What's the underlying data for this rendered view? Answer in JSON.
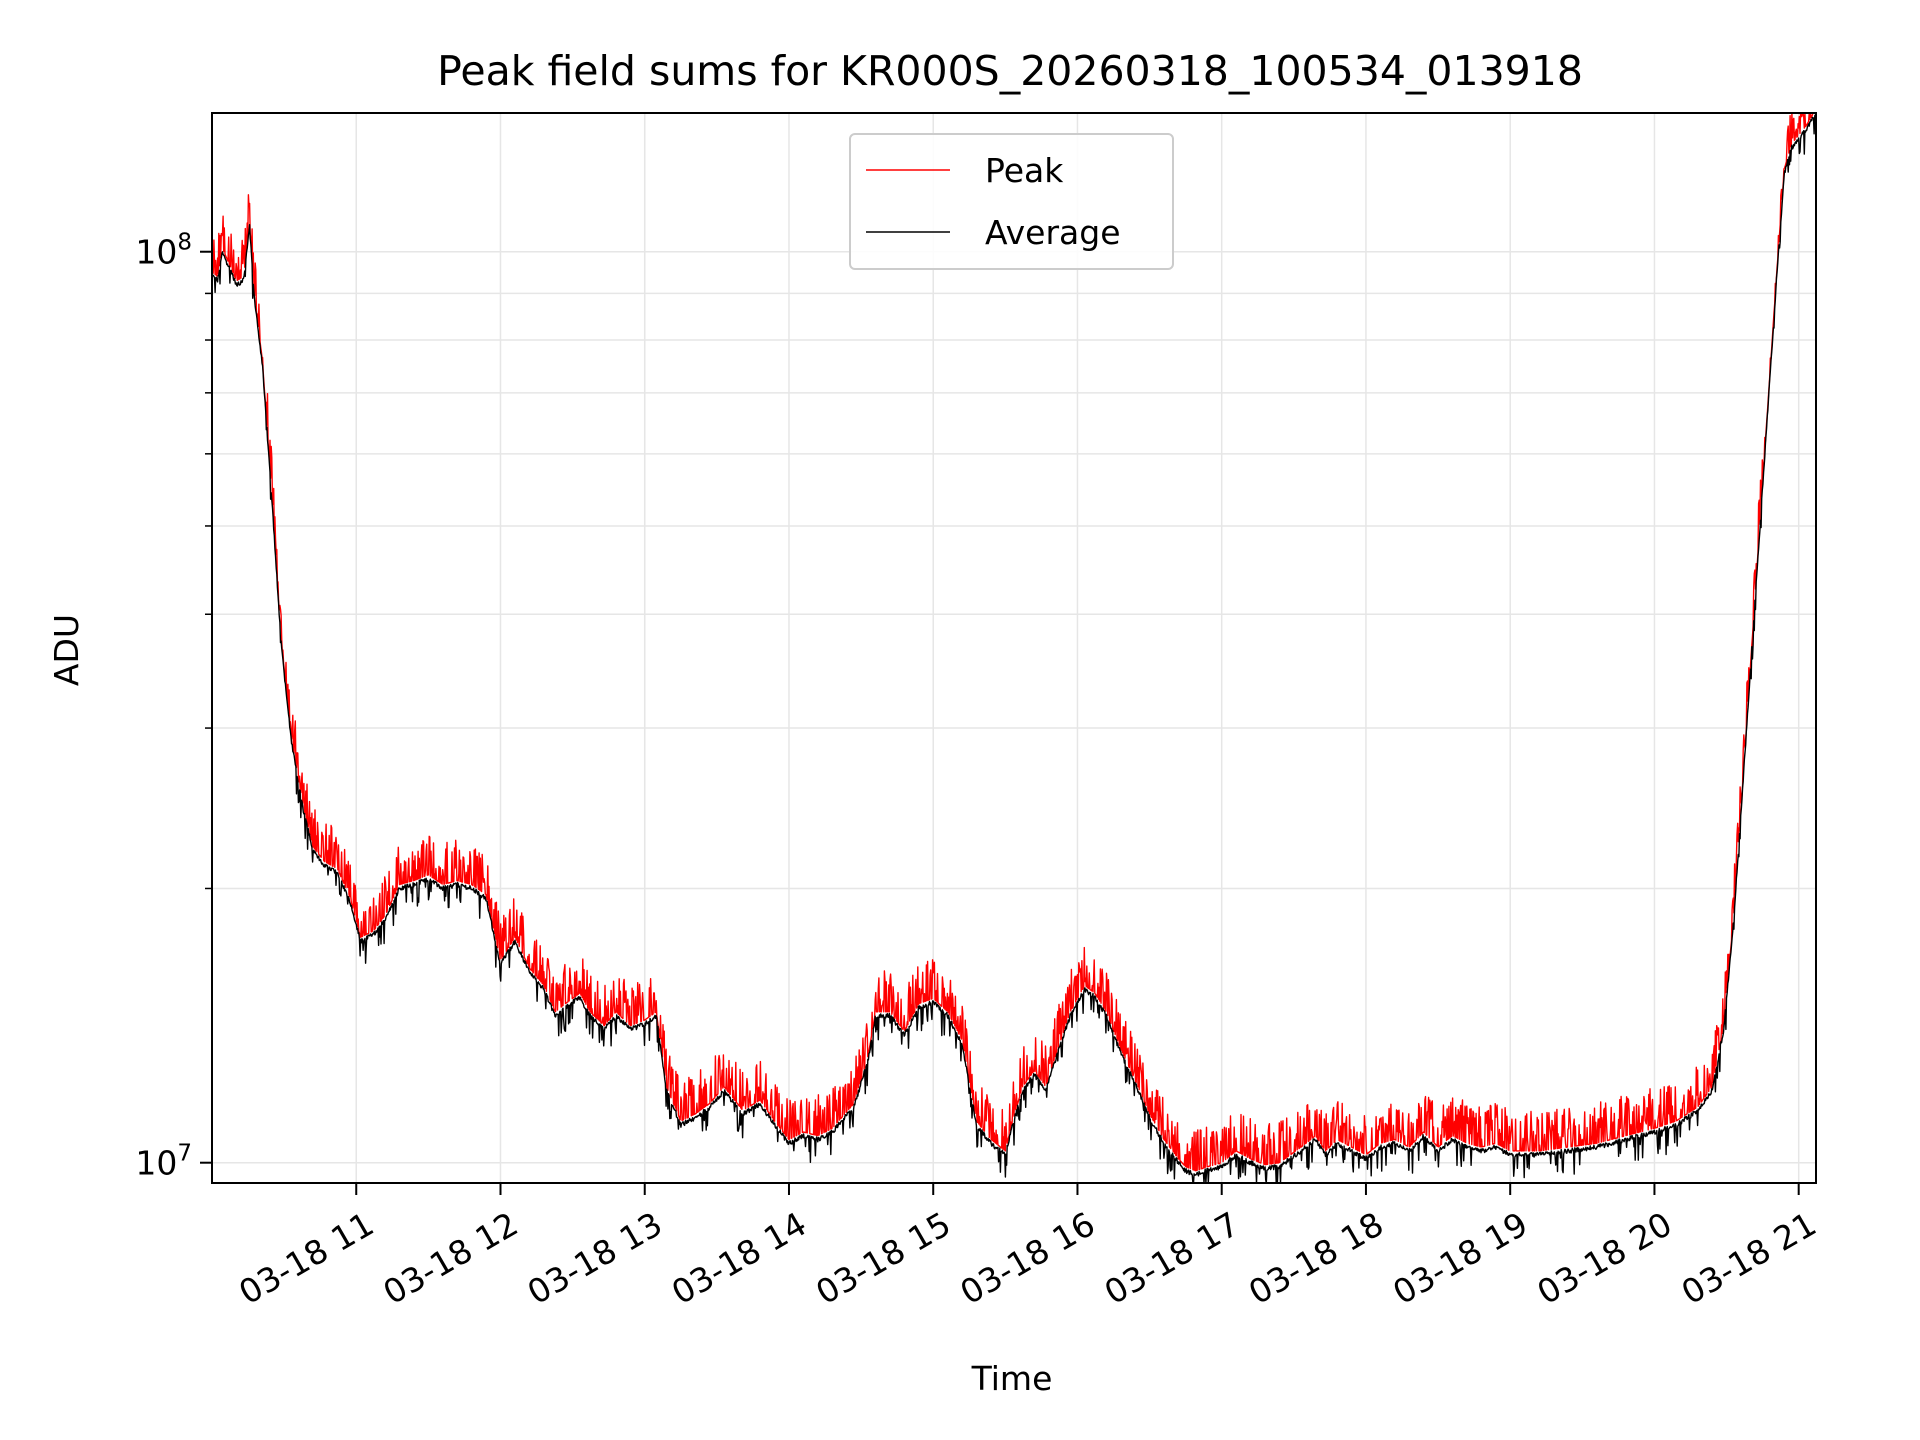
{
  "chart_data": {
    "type": "line",
    "title": "Peak field sums for KR000S_20260318_100534_013918",
    "xlabel": "Time",
    "ylabel": "ADU",
    "yscale": "log",
    "xlim_hours": [
      10.0,
      21.12
    ],
    "ylim": [
      9500000.0,
      142000000.0
    ],
    "x_ticks": [
      {
        "label": "03-18 11",
        "hour": 11
      },
      {
        "label": "03-18 12",
        "hour": 12
      },
      {
        "label": "03-18 13",
        "hour": 13
      },
      {
        "label": "03-18 14",
        "hour": 14
      },
      {
        "label": "03-18 15",
        "hour": 15
      },
      {
        "label": "03-18 16",
        "hour": 16
      },
      {
        "label": "03-18 17",
        "hour": 17
      },
      {
        "label": "03-18 18",
        "hour": 18
      },
      {
        "label": "03-18 19",
        "hour": 19
      },
      {
        "label": "03-18 20",
        "hour": 20
      },
      {
        "label": "03-18 21",
        "hour": 21
      }
    ],
    "y_ticks": [
      {
        "base": "10",
        "exp": "7",
        "value": 10000000.0
      },
      {
        "base": "10",
        "exp": "8",
        "value": 100000000.0
      }
    ],
    "grid": true,
    "legend_position": "top-center",
    "series": [
      {
        "name": "Peak",
        "color": "#ff0000",
        "spiky": true
      },
      {
        "name": "Average",
        "color": "#000000",
        "spiky": false
      }
    ],
    "average_points": [
      [
        10.0,
        94000000.0
      ],
      [
        10.04,
        93000000.0
      ],
      [
        10.07,
        100000000.0
      ],
      [
        10.12,
        96000000.0
      ],
      [
        10.17,
        92000000.0
      ],
      [
        10.22,
        93000000.0
      ],
      [
        10.26,
        107000000.0
      ],
      [
        10.29,
        90000000.0
      ],
      [
        10.35,
        75000000.0
      ],
      [
        10.42,
        52000000.0
      ],
      [
        10.48,
        37000000.0
      ],
      [
        10.55,
        29000000.0
      ],
      [
        10.63,
        24500000.0
      ],
      [
        10.7,
        22000000.0
      ],
      [
        10.78,
        21200000.0
      ],
      [
        10.87,
        20800000.0
      ],
      [
        10.95,
        19500000.0
      ],
      [
        11.03,
        17500000.0
      ],
      [
        11.12,
        17800000.0
      ],
      [
        11.2,
        18500000.0
      ],
      [
        11.3,
        20000000.0
      ],
      [
        11.4,
        20200000.0
      ],
      [
        11.5,
        20500000.0
      ],
      [
        11.6,
        20000000.0
      ],
      [
        11.7,
        20200000.0
      ],
      [
        11.8,
        20000000.0
      ],
      [
        11.9,
        19500000.0
      ],
      [
        12.0,
        16500000.0
      ],
      [
        12.1,
        17500000.0
      ],
      [
        12.2,
        16200000.0
      ],
      [
        12.3,
        15500000.0
      ],
      [
        12.38,
        14500000.0
      ],
      [
        12.45,
        14800000.0
      ],
      [
        12.55,
        15200000.0
      ],
      [
        12.62,
        14500000.0
      ],
      [
        12.72,
        14000000.0
      ],
      [
        12.8,
        14500000.0
      ],
      [
        12.9,
        14000000.0
      ],
      [
        13.0,
        14200000.0
      ],
      [
        13.08,
        14500000.0
      ],
      [
        13.15,
        12000000.0
      ],
      [
        13.25,
        11000000.0
      ],
      [
        13.35,
        11200000.0
      ],
      [
        13.45,
        11500000.0
      ],
      [
        13.55,
        12000000.0
      ],
      [
        13.68,
        11300000.0
      ],
      [
        13.8,
        11600000.0
      ],
      [
        13.9,
        11000000.0
      ],
      [
        14.0,
        10500000.0
      ],
      [
        14.1,
        10700000.0
      ],
      [
        14.2,
        10600000.0
      ],
      [
        14.3,
        10800000.0
      ],
      [
        14.45,
        11500000.0
      ],
      [
        14.55,
        13000000.0
      ],
      [
        14.6,
        14500000.0
      ],
      [
        14.7,
        14500000.0
      ],
      [
        14.8,
        13800000.0
      ],
      [
        14.9,
        14800000.0
      ],
      [
        15.0,
        15000000.0
      ],
      [
        15.1,
        14500000.0
      ],
      [
        15.2,
        13500000.0
      ],
      [
        15.3,
        11000000.0
      ],
      [
        15.4,
        10500000.0
      ],
      [
        15.5,
        10200000.0
      ],
      [
        15.55,
        11000000.0
      ],
      [
        15.62,
        12000000.0
      ],
      [
        15.7,
        12500000.0
      ],
      [
        15.78,
        12000000.0
      ],
      [
        15.85,
        13000000.0
      ],
      [
        15.95,
        14500000.0
      ],
      [
        16.05,
        15500000.0
      ],
      [
        16.12,
        15200000.0
      ],
      [
        16.2,
        14500000.0
      ],
      [
        16.3,
        13200000.0
      ],
      [
        16.4,
        12200000.0
      ],
      [
        16.5,
        11200000.0
      ],
      [
        16.6,
        10500000.0
      ],
      [
        16.7,
        10000000.0
      ],
      [
        16.75,
        9800000.0
      ],
      [
        16.82,
        9700000.0
      ],
      [
        16.9,
        9800000.0
      ],
      [
        17.0,
        9900000.0
      ],
      [
        17.1,
        10200000.0
      ],
      [
        17.2,
        10000000.0
      ],
      [
        17.3,
        9850000.0
      ],
      [
        17.4,
        9900000.0
      ],
      [
        17.55,
        10300000.0
      ],
      [
        17.65,
        10600000.0
      ],
      [
        17.72,
        10200000.0
      ],
      [
        17.8,
        10500000.0
      ],
      [
        17.9,
        10300000.0
      ],
      [
        18.0,
        10100000.0
      ],
      [
        18.1,
        10400000.0
      ],
      [
        18.2,
        10500000.0
      ],
      [
        18.3,
        10300000.0
      ],
      [
        18.4,
        10700000.0
      ],
      [
        18.5,
        10300000.0
      ],
      [
        18.6,
        10600000.0
      ],
      [
        18.7,
        10400000.0
      ],
      [
        18.8,
        10300000.0
      ],
      [
        18.9,
        10400000.0
      ],
      [
        19.0,
        10200000.0
      ],
      [
        19.2,
        10200000.0
      ],
      [
        19.4,
        10300000.0
      ],
      [
        19.6,
        10400000.0
      ],
      [
        19.8,
        10600000.0
      ],
      [
        20.0,
        10800000.0
      ],
      [
        20.15,
        11000000.0
      ],
      [
        20.3,
        11400000.0
      ],
      [
        20.4,
        12000000.0
      ],
      [
        20.48,
        14000000.0
      ],
      [
        20.55,
        18500000.0
      ],
      [
        20.62,
        27000000.0
      ],
      [
        20.7,
        42000000.0
      ],
      [
        20.78,
        65000000.0
      ],
      [
        20.85,
        95000000.0
      ],
      [
        20.9,
        122000000.0
      ],
      [
        20.95,
        130000000.0
      ],
      [
        21.0,
        133000000.0
      ],
      [
        21.05,
        136000000.0
      ],
      [
        21.12,
        142000000.0
      ]
    ]
  }
}
